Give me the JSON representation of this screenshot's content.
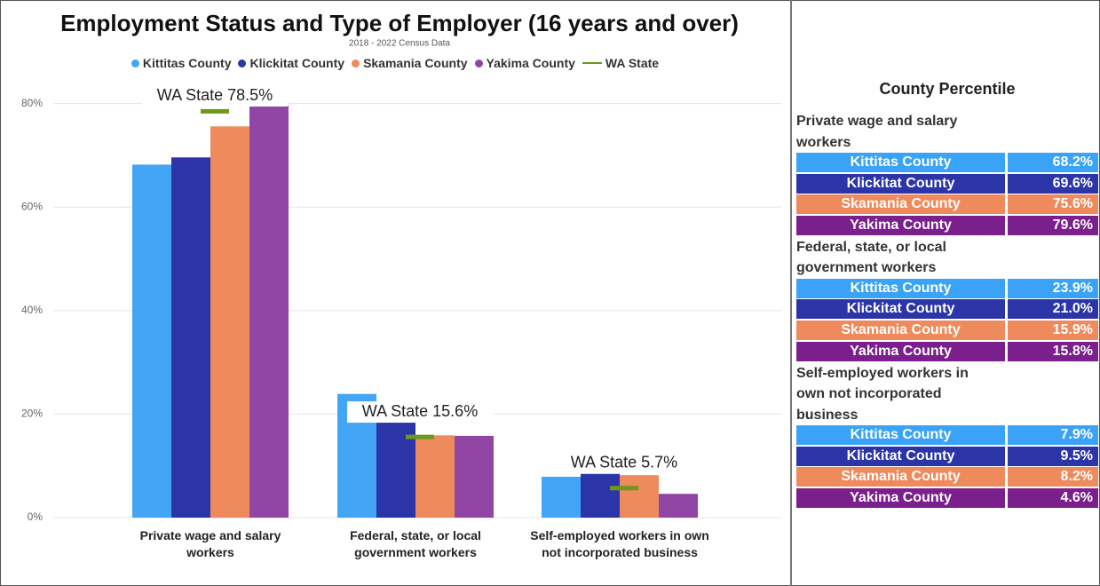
{
  "chart_data": {
    "type": "bar",
    "title": "Employment Status and Type of Employer (16 years and over)",
    "subtitle": "2018 - 2022 Census Data",
    "categories": [
      "Private wage and salary workers",
      "Federal, state, or local government workers",
      "Self-employed workers in own not incorporated business"
    ],
    "series": [
      {
        "name": "Kittitas County",
        "color": "#42a5f5",
        "values": [
          68.2,
          23.9,
          7.9
        ]
      },
      {
        "name": "Klickitat County",
        "color": "#2b35a8",
        "values": [
          69.6,
          21.0,
          9.5
        ]
      },
      {
        "name": "Skamania County",
        "color": "#ee8a5c",
        "values": [
          75.6,
          15.9,
          8.2
        ]
      },
      {
        "name": "Yakima County",
        "color": "#9146a6",
        "values": [
          79.6,
          15.8,
          4.6
        ]
      },
      {
        "name": "WA State",
        "color": "#6b9a18",
        "type": "line",
        "values": [
          78.5,
          15.6,
          5.7
        ],
        "value_labels": [
          "WA State 78.5%",
          "WA State 15.6%",
          "WA State 5.7%"
        ]
      }
    ],
    "ylim": [
      0,
      82
    ],
    "yticks": [
      {
        "value": 0,
        "label": "0%"
      },
      {
        "value": 20,
        "label": "20%"
      },
      {
        "value": 40,
        "label": "40%"
      },
      {
        "value": 60,
        "label": "60%"
      },
      {
        "value": 80,
        "label": "80%"
      }
    ],
    "grid": true
  },
  "table": {
    "title": "County Percentile",
    "sections": [
      {
        "heading": "Private wage and salary workers",
        "rows": [
          [
            "Kittitas County",
            "68.2%"
          ],
          [
            "Klickitat County",
            "69.6%"
          ],
          [
            "Skamania County",
            "75.6%"
          ],
          [
            "Yakima County",
            "79.6%"
          ]
        ]
      },
      {
        "heading": "Federal, state, or local government workers",
        "rows": [
          [
            "Kittitas County",
            "23.9%"
          ],
          [
            "Klickitat County",
            "21.0%"
          ],
          [
            "Skamania County",
            "15.9%"
          ],
          [
            "Yakima County",
            "15.8%"
          ]
        ]
      },
      {
        "heading": "Self-employed workers in own not incorporated business",
        "rows": [
          [
            "Kittitas County",
            "7.9%"
          ],
          [
            "Klickitat County",
            "9.5%"
          ],
          [
            "Skamania County",
            "8.2%"
          ],
          [
            "Yakima County",
            "4.6%"
          ]
        ]
      }
    ],
    "row_colors": [
      "#3ba3f7",
      "#2b35a8",
      "#ee8a5c",
      "#7a1f8c"
    ]
  }
}
